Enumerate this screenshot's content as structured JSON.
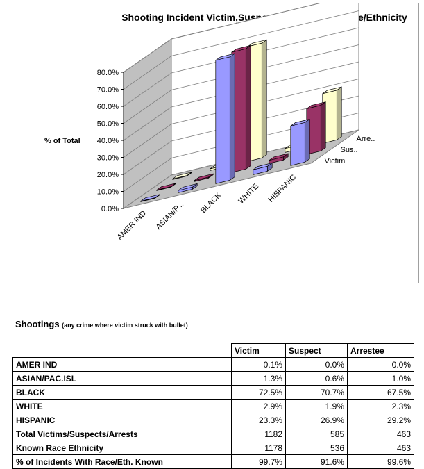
{
  "chart_data": {
    "type": "bar",
    "title": "Shooting Incident Victim,Suspect and Arrestee Race/Ethnicity",
    "ylabel": "% of Total",
    "ylim": [
      0,
      80
    ],
    "yticks": [
      "0.0%",
      "10.0%",
      "20.0%",
      "30.0%",
      "40.0%",
      "50.0%",
      "60.0%",
      "70.0%",
      "80.0%"
    ],
    "categories": [
      "AMER IND",
      "ASIAN/P...",
      "BLACK",
      "WHITE",
      "HISPANIC"
    ],
    "series": [
      {
        "name": "Victim",
        "values": [
          0.1,
          1.3,
          72.5,
          2.9,
          23.3
        ],
        "color": "#9999ff"
      },
      {
        "name": "Sus..",
        "values": [
          0.0,
          0.6,
          70.7,
          1.9,
          26.9
        ],
        "color": "#993366"
      },
      {
        "name": "Arre..",
        "values": [
          0.0,
          1.0,
          67.5,
          2.3,
          29.2
        ],
        "color": "#ffffcc"
      }
    ],
    "grid": true
  },
  "table": {
    "title": "Shootings",
    "subtitle": "(any crime where victim struck with bullet)",
    "headers": [
      "Victim",
      "Suspect",
      "Arrestee"
    ],
    "rows": [
      {
        "label": "AMER IND",
        "values": [
          "0.1%",
          "0.0%",
          "0.0%"
        ]
      },
      {
        "label": "ASIAN/PAC.ISL",
        "values": [
          "1.3%",
          "0.6%",
          "1.0%"
        ]
      },
      {
        "label": "BLACK",
        "values": [
          "72.5%",
          "70.7%",
          "67.5%"
        ]
      },
      {
        "label": "WHITE",
        "values": [
          "2.9%",
          "1.9%",
          "2.3%"
        ]
      },
      {
        "label": "HISPANIC",
        "values": [
          "23.3%",
          "26.9%",
          "29.2%"
        ]
      },
      {
        "label": "Total Victims/Suspects/Arrests",
        "values": [
          "1182",
          "585",
          "463"
        ]
      },
      {
        "label": "Known Race Ethnicity",
        "values": [
          "1178",
          "536",
          "463"
        ]
      },
      {
        "label": "% of Incidents With Race/Eth. Known",
        "values": [
          "99.7%",
          "91.6%",
          "99.6%"
        ]
      }
    ]
  }
}
